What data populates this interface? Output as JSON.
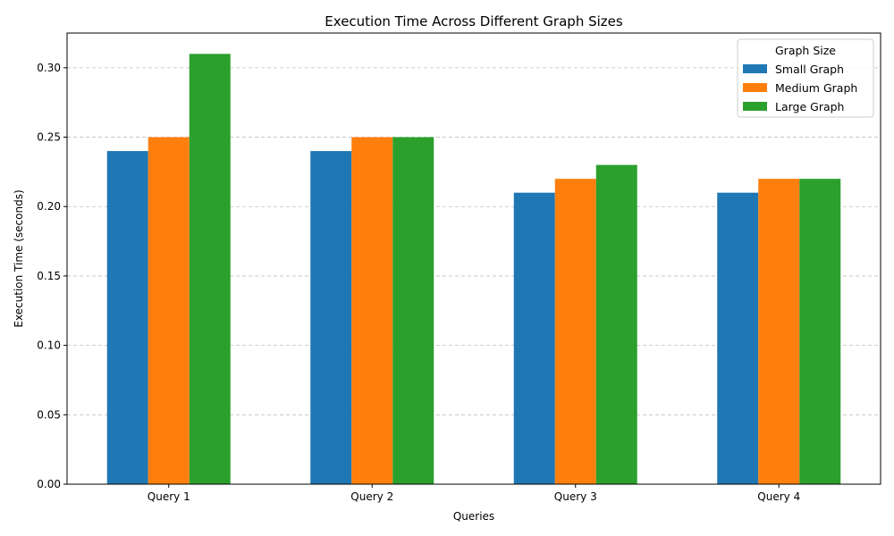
{
  "chart_data": {
    "type": "bar",
    "title": "Execution Time Across Different Graph Sizes",
    "xlabel": "Queries",
    "ylabel": "Execution Time (seconds)",
    "categories": [
      "Query 1",
      "Query 2",
      "Query 3",
      "Query 4"
    ],
    "series": [
      {
        "name": "Small Graph",
        "color": "#1f77b4",
        "values": [
          0.24,
          0.24,
          0.21,
          0.21
        ]
      },
      {
        "name": "Medium Graph",
        "color": "#ff7f0e",
        "values": [
          0.25,
          0.25,
          0.22,
          0.22
        ]
      },
      {
        "name": "Large Graph",
        "color": "#2ca02c",
        "values": [
          0.31,
          0.25,
          0.23,
          0.22
        ]
      }
    ],
    "ylim": [
      0,
      0.325
    ],
    "yticks": [
      "0.00",
      "0.05",
      "0.10",
      "0.15",
      "0.20",
      "0.25",
      "0.30"
    ],
    "grid": "y-dashed",
    "legend": {
      "title": "Graph Size",
      "placement": "top-right"
    }
  }
}
